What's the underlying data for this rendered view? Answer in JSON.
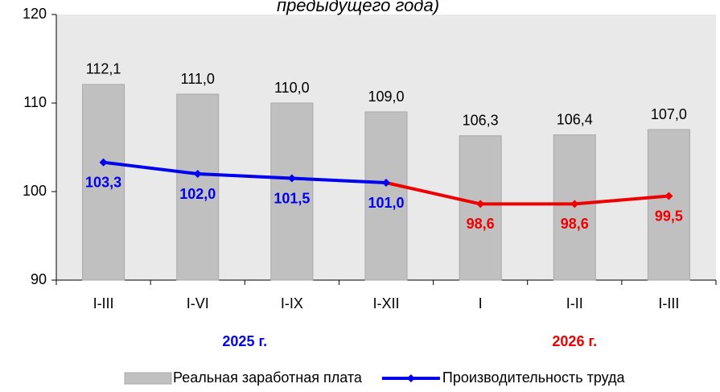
{
  "chart_data": {
    "type": "bar_line",
    "title": "предыдущего года)",
    "categories": [
      "I-III",
      "I-VI",
      "I-IX",
      "I-XII",
      "I",
      "I-II",
      "I-III"
    ],
    "groups": [
      {
        "label": "2025 г.",
        "first": 0,
        "last": 3,
        "color": "#0000ee"
      },
      {
        "label": "2026 г.",
        "first": 4,
        "last": 6,
        "color": "#ee0000"
      }
    ],
    "series": [
      {
        "name": "Реальная заработная плата",
        "kind": "bar",
        "color": "#c0c0c0",
        "values": [
          112.1,
          111.0,
          110.0,
          109.0,
          106.3,
          106.4,
          107.0
        ],
        "value_labels": [
          "112,1",
          "111,0",
          "110,0",
          "109,0",
          "106,3",
          "106,4",
          "107,0"
        ]
      },
      {
        "name": "Производительность труда",
        "kind": "line",
        "color": "#0000ee",
        "point_colors": [
          "#0000ee",
          "#0000ee",
          "#0000ee",
          "#0000ee",
          "#ee0000",
          "#ee0000",
          "#ee0000"
        ],
        "values": [
          103.3,
          102.0,
          101.5,
          101.0,
          98.6,
          98.6,
          99.5
        ],
        "value_labels": [
          "103,3",
          "102,0",
          "101,5",
          "101,0",
          "98,6",
          "98,6",
          "99,5"
        ]
      }
    ],
    "ylim": [
      90,
      120
    ],
    "yticks": [
      90,
      100,
      110,
      120
    ],
    "grid": false,
    "legend": "bottom"
  }
}
